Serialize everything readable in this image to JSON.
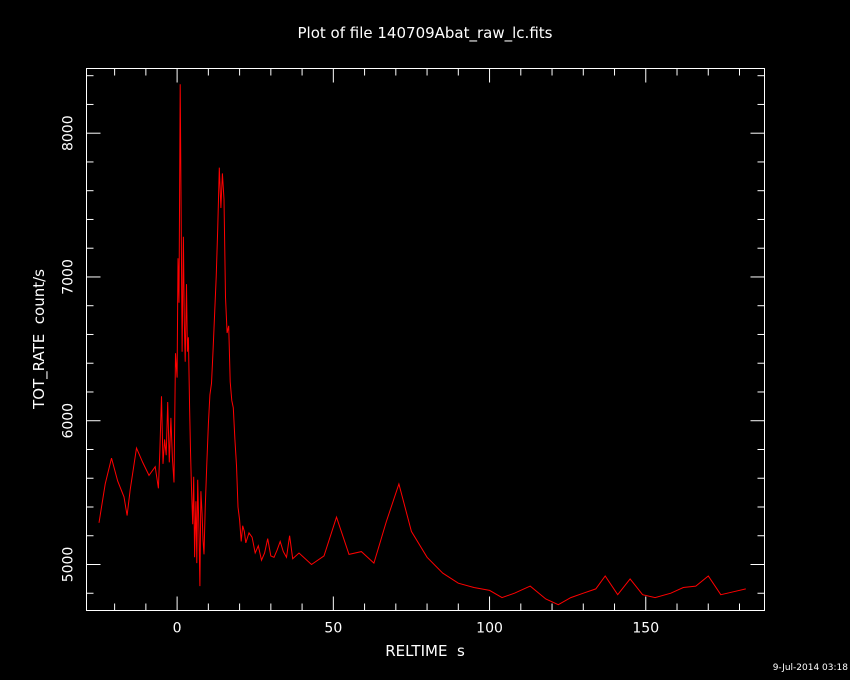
{
  "chart_data": {
    "type": "line",
    "title": "Plot of file 140709Abat_raw_lc.fits",
    "xlabel": "RELTIME  s",
    "ylabel": "TOT_RATE  count/s",
    "xlim": [
      -29,
      188
    ],
    "ylim": [
      4680,
      8450
    ],
    "xticks": [
      0,
      50,
      100,
      150
    ],
    "yticks": [
      5000,
      6000,
      7000,
      8000
    ],
    "background": "#000000",
    "axis_color": "#ffffff",
    "line_color": "#ff0000",
    "grid": false,
    "series": [
      {
        "x": [
          -25,
          -23,
          -21,
          -19,
          -17,
          -16,
          -15,
          -13,
          -11,
          -9,
          -7,
          -6,
          -5.5,
          -5,
          -4.5,
          -4,
          -3.5,
          -3,
          -2.5,
          -2,
          -1.5,
          -1,
          -0.5,
          0,
          0.3,
          0.6,
          1,
          1.3,
          1.6,
          2,
          2.3,
          2.6,
          3,
          3.3,
          3.6,
          4,
          4.3,
          4.6,
          5,
          5.3,
          5.6,
          6,
          6.3,
          6.6,
          7,
          7.3,
          7.6,
          8,
          8.3,
          8.6,
          9,
          9.5,
          10,
          10.5,
          11,
          11.5,
          12,
          12.5,
          13,
          13.5,
          14,
          14.5,
          15,
          15.5,
          16,
          16.5,
          17,
          17.5,
          18,
          18.5,
          19,
          19.5,
          20,
          20.5,
          21,
          21.5,
          22,
          23,
          24,
          25,
          26,
          27,
          28,
          29,
          30,
          31,
          32,
          33,
          34,
          35,
          36,
          37,
          39,
          43,
          47,
          51,
          55,
          59,
          63,
          67,
          71,
          75,
          80,
          85,
          90,
          95,
          100,
          104,
          108,
          113,
          118,
          122,
          126,
          130,
          134,
          137,
          141,
          145,
          149,
          153,
          158,
          162,
          166,
          170,
          174,
          178,
          182
        ],
        "y": [
          5290,
          5560,
          5740,
          5580,
          5470,
          5340,
          5520,
          5810,
          5710,
          5620,
          5680,
          5530,
          5800,
          6170,
          5700,
          5870,
          5760,
          6130,
          5710,
          6020,
          5740,
          5570,
          6470,
          6300,
          7130,
          6820,
          8340,
          7390,
          6480,
          7280,
          6690,
          6410,
          6950,
          6480,
          6580,
          6090,
          5790,
          5530,
          5280,
          5610,
          5050,
          5440,
          5010,
          5590,
          5220,
          4850,
          5510,
          5350,
          5170,
          5070,
          5390,
          5700,
          5980,
          6180,
          6260,
          6480,
          6740,
          7000,
          7330,
          7760,
          7480,
          7720,
          7540,
          6860,
          6610,
          6660,
          6270,
          6140,
          6090,
          5870,
          5690,
          5400,
          5310,
          5160,
          5270,
          5230,
          5150,
          5220,
          5190,
          5080,
          5130,
          5030,
          5080,
          5180,
          5060,
          5050,
          5100,
          5160,
          5090,
          5050,
          5200,
          5040,
          5080,
          5000,
          5060,
          5330,
          5070,
          5090,
          5010,
          5300,
          5560,
          5230,
          5050,
          4940,
          4870,
          4840,
          4820,
          4770,
          4800,
          4850,
          4760,
          4720,
          4770,
          4800,
          4830,
          4920,
          4790,
          4900,
          4790,
          4770,
          4800,
          4840,
          4850,
          4920,
          4790,
          4810,
          4830
        ]
      }
    ],
    "timestamp": "9-Jul-2014 03:18"
  }
}
